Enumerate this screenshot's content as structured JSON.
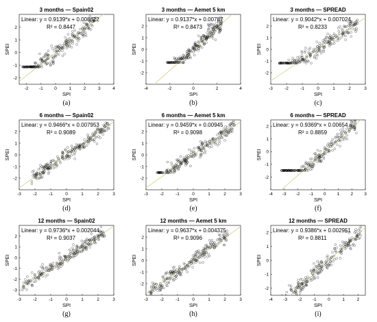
{
  "panels": [
    {
      "id": "a",
      "title": "3 months — Spain02",
      "label": "(a)",
      "xlabel": "SPI",
      "ylabel": "SPEI",
      "equation_line1": "Linear:  y = 0.9139*x + 0.008622",
      "equation_line2": "R² = 0.8447",
      "xlim": [
        -2.5,
        4
      ],
      "ylim": [
        -2.5,
        3
      ],
      "xticks": [
        "-2",
        "-1",
        "0",
        "1",
        "2",
        "3",
        "4"
      ],
      "xtick_values": [
        -2,
        -1,
        0,
        1,
        2,
        3,
        4
      ],
      "yticks": [
        "-2",
        "-1",
        "0",
        "1",
        "2"
      ],
      "ytick_values": [
        -2,
        -1,
        0,
        1,
        2
      ],
      "slope": 0.9139,
      "intercept": 0.008622,
      "floor": -1.15,
      "spread": 0.33,
      "xmin": -2.3,
      "xmax": 2.8
    },
    {
      "id": "b",
      "title": "3 months — Aemet 5 km",
      "label": "(b)",
      "xlabel": "SPI",
      "ylabel": "SPEI",
      "equation_line1": "Linear:  y = 0.9137*x + 0.00787",
      "equation_line2": "R² = 0.8473",
      "xlim": [
        -4,
        4
      ],
      "ylim": [
        -3,
        3
      ],
      "xticks": [
        "-4",
        "-2",
        "0",
        "2",
        "4"
      ],
      "xtick_values": [
        -4,
        -2,
        0,
        2,
        4
      ],
      "yticks": [
        "-2",
        "-1",
        "0",
        "1",
        "2"
      ],
      "ytick_values": [
        -2,
        -1,
        0,
        1,
        2
      ],
      "slope": 0.9137,
      "intercept": 0.00787,
      "floor": -1.15,
      "spread": 0.32,
      "xmin": -2.2,
      "xmax": 2.4
    },
    {
      "id": "c",
      "title": "3 months — SPREAD",
      "label": "(c)",
      "xlabel": "SPI",
      "ylabel": "SPEI",
      "equation_line1": "Linear:  y = 0.9042*x + 0.007024",
      "equation_line2": "R² = 0.8233",
      "xlim": [
        -3,
        3
      ],
      "ylim": [
        -3,
        3
      ],
      "xticks": [
        "-3",
        "-2",
        "-1",
        "0",
        "1",
        "2",
        "3"
      ],
      "xtick_values": [
        -3,
        -2,
        -1,
        0,
        1,
        2,
        3
      ],
      "yticks": [
        "-2",
        "-1",
        "0",
        "1",
        "2"
      ],
      "ytick_values": [
        -2,
        -1,
        0,
        1,
        2
      ],
      "slope": 0.9042,
      "intercept": 0.007024,
      "floor": -1.2,
      "spread": 0.36,
      "xmin": -2.5,
      "xmax": 2.5
    },
    {
      "id": "d",
      "title": "6 months — Spain02",
      "label": "(d)",
      "xlabel": "SPI",
      "ylabel": "SPEI",
      "equation_line1": "Linear:  y = 0.9466*x + 0.007953",
      "equation_line2": "R² = 0.9089",
      "xlim": [
        -3,
        3
      ],
      "ylim": [
        -3,
        3
      ],
      "xticks": [
        "-3",
        "-2",
        "-1",
        "0",
        "1",
        "2",
        "3"
      ],
      "xtick_values": [
        -3,
        -2,
        -1,
        0,
        1,
        2,
        3
      ],
      "yticks": [
        "-2",
        "-1",
        "0",
        "1",
        "2"
      ],
      "ytick_values": [
        -2,
        -1,
        0,
        1,
        2
      ],
      "slope": 0.9466,
      "intercept": 0.007953,
      "floor": -9,
      "spread": 0.27,
      "xmin": -2.2,
      "xmax": 2.7
    },
    {
      "id": "e",
      "title": "6 months — Aemet 5 km",
      "label": "(e)",
      "xlabel": "SPI",
      "ylabel": "SPEI",
      "equation_line1": "Linear:  y = 0.9459*x + 0.00945",
      "equation_line2": "R² = 0.9098",
      "xlim": [
        -3,
        3
      ],
      "ylim": [
        -3,
        3
      ],
      "xticks": [
        "-3",
        "-2",
        "-1",
        "0",
        "1",
        "2",
        "3"
      ],
      "xtick_values": [
        -3,
        -2,
        -1,
        0,
        1,
        2,
        3
      ],
      "yticks": [
        "-2",
        "-1",
        "0",
        "1",
        "2"
      ],
      "ytick_values": [
        -2,
        -1,
        0,
        1,
        2
      ],
      "slope": 0.9459,
      "intercept": 0.00945,
      "floor": -1.55,
      "spread": 0.27,
      "xmin": -2.3,
      "xmax": 2.6
    },
    {
      "id": "f",
      "title": "6 months — SPREAD",
      "label": "(f)",
      "xlabel": "SPI",
      "ylabel": "SPEI",
      "equation_line1": "Linear:  y = 0.9369*x + 0.00654",
      "equation_line2": "R² = 0.8859",
      "xlim": [
        -4,
        3
      ],
      "ylim": [
        -3,
        2.5
      ],
      "xticks": [
        "-4",
        "-3",
        "-2",
        "-1",
        "0",
        "1",
        "2",
        "3"
      ],
      "xtick_values": [
        -4,
        -3,
        -2,
        -1,
        0,
        1,
        2,
        3
      ],
      "yticks": [
        "-2",
        "-1",
        "0",
        "1",
        "2"
      ],
      "ytick_values": [
        -2,
        -1,
        0,
        1,
        2
      ],
      "slope": 0.9369,
      "intercept": 0.00654,
      "floor": -1.5,
      "spread": 0.3,
      "xmin": -3.2,
      "xmax": 2.4
    },
    {
      "id": "g",
      "title": "12 months — Spain02",
      "label": "(g)",
      "xlabel": "SPI",
      "ylabel": "SPEI",
      "equation_line1": "Linear:  y = 0.9736*x + 0.002044",
      "equation_line2": "R² = 0.9037",
      "xlim": [
        -3,
        3
      ],
      "ylim": [
        -3.5,
        3
      ],
      "xticks": [
        "-3",
        "-2",
        "-1",
        "0",
        "1",
        "2",
        "3"
      ],
      "xtick_values": [
        -3,
        -2,
        -1,
        0,
        1,
        2,
        3
      ],
      "yticks": [
        "-3",
        "-2",
        "-1",
        "0",
        "1",
        "2"
      ],
      "ytick_values": [
        -3,
        -2,
        -1,
        0,
        1,
        2
      ],
      "slope": 0.9736,
      "intercept": 0.002044,
      "floor": -9,
      "spread": 0.3,
      "xmin": -2.8,
      "xmax": 2.4
    },
    {
      "id": "h",
      "title": "12 months — Aemet 5 km",
      "label": "(h)",
      "xlabel": "SPI",
      "ylabel": "SPEI",
      "equation_line1": "Linear:  y = 0.9637*x + 0.004375",
      "equation_line2": "R² = 0.9096",
      "xlim": [
        -3,
        3
      ],
      "ylim": [
        -3,
        3
      ],
      "xticks": [
        "-3",
        "-2",
        "-1",
        "0",
        "1",
        "2",
        "3"
      ],
      "xtick_values": [
        -3,
        -2,
        -1,
        0,
        1,
        2,
        3
      ],
      "yticks": [
        "-2",
        "-1",
        "0",
        "1",
        "2"
      ],
      "ytick_values": [
        -2,
        -1,
        0,
        1,
        2
      ],
      "slope": 0.9637,
      "intercept": 0.004375,
      "floor": -9,
      "spread": 0.29,
      "xmin": -2.8,
      "xmax": 2.2
    },
    {
      "id": "i",
      "title": "12 months — SPREAD",
      "label": "(i)",
      "xlabel": "SPI",
      "ylabel": "SPEI",
      "equation_line1": "Linear:  y = 0.9386*x + 0.002951",
      "equation_line2": "R² = 0.8811",
      "xlim": [
        -4,
        2.5
      ],
      "ylim": [
        -2.5,
        2.5
      ],
      "xticks": [
        "-4",
        "-3",
        "-2",
        "-1",
        "0",
        "1",
        "2"
      ],
      "xtick_values": [
        -4,
        -3,
        -2,
        -1,
        0,
        1,
        2
      ],
      "yticks": [
        "-2",
        "-1",
        "0",
        "1",
        "2"
      ],
      "ytick_values": [
        -2,
        -1,
        0,
        1,
        2
      ],
      "slope": 0.9386,
      "intercept": 0.002951,
      "floor": -9,
      "spread": 0.3,
      "xmin": -3.3,
      "xmax": 2.2
    }
  ],
  "chart_data": {
    "type": "scatter",
    "note_series": "Each panel: scatter of SPEI vs SPI with a linear fit line",
    "marker_color": "#000000",
    "fit_line_color": "#d8d89a"
  }
}
